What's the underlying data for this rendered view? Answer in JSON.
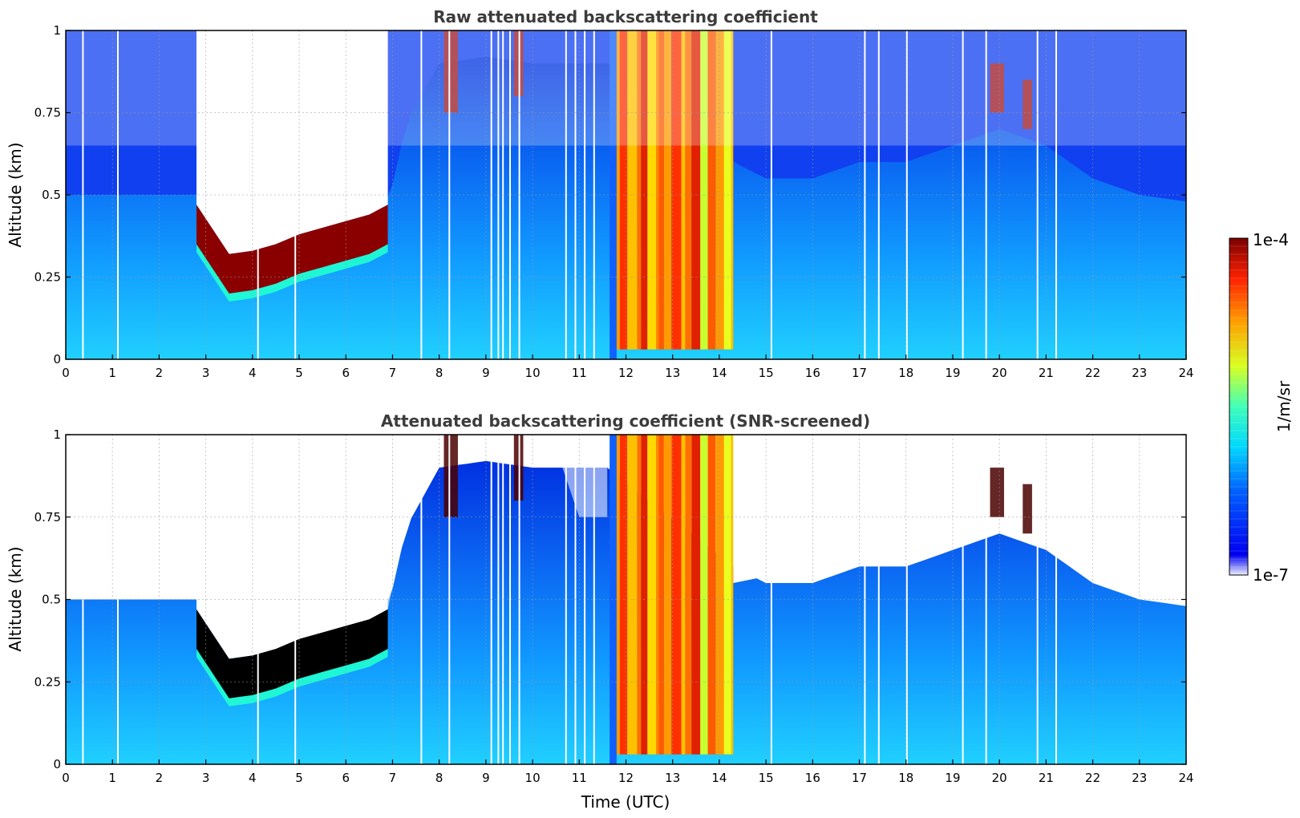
{
  "chart_data": [
    {
      "type": "heatmap",
      "title": "Raw attenuated backscattering coefficient",
      "xlabel": "",
      "ylabel": "Altitude (km)",
      "xlim": [
        0,
        24
      ],
      "ylim": [
        0,
        1
      ],
      "x_ticks": [
        "0",
        "1",
        "2",
        "3",
        "4",
        "5",
        "6",
        "7",
        "8",
        "9",
        "10",
        "11",
        "12",
        "13",
        "14",
        "15",
        "16",
        "17",
        "18",
        "19",
        "20",
        "21",
        "22",
        "23",
        "24"
      ],
      "y_ticks": [
        "0",
        "0.25",
        "0.5",
        "0.75",
        "1"
      ],
      "grid": true,
      "colormap": "jet",
      "background_layer_top_km": [
        [
          0,
          0.5
        ],
        [
          2.8,
          0.5
        ],
        [
          3.5,
          0.32
        ],
        [
          4.0,
          0.34
        ],
        [
          4.5,
          0.33
        ],
        [
          5.0,
          0.37
        ],
        [
          5.5,
          0.39
        ],
        [
          6.0,
          0.41
        ],
        [
          6.5,
          0.43
        ],
        [
          6.9,
          0.47
        ],
        [
          7.3,
          0.72
        ],
        [
          8.0,
          0.9
        ],
        [
          9.0,
          0.92
        ],
        [
          10,
          0.9
        ],
        [
          11,
          0.9
        ],
        [
          11.6,
          0.9
        ],
        [
          14.3,
          0.6
        ],
        [
          15,
          0.55
        ],
        [
          16,
          0.55
        ],
        [
          17,
          0.6
        ],
        [
          18,
          0.6
        ],
        [
          19,
          0.65
        ],
        [
          20,
          0.7
        ],
        [
          21,
          0.65
        ],
        [
          22,
          0.55
        ],
        [
          23,
          0.5
        ],
        [
          24,
          0.48
        ]
      ],
      "cloud_layer": {
        "x_range": [
          2.8,
          6.9
        ],
        "base_km": [
          [
            2.8,
            0.35
          ],
          [
            3.5,
            0.2
          ],
          [
            4.0,
            0.21
          ],
          [
            4.5,
            0.23
          ],
          [
            5.0,
            0.26
          ],
          [
            5.5,
            0.28
          ],
          [
            6.0,
            0.3
          ],
          [
            6.5,
            0.32
          ],
          [
            6.9,
            0.35
          ]
        ]
      },
      "rain_interval": [
        11.7,
        14.3
      ],
      "elevated_features": [
        {
          "x": [
            8.1,
            8.4
          ],
          "alt_range": [
            0.75,
            1.0
          ]
        },
        {
          "x": [
            9.6,
            9.8
          ],
          "alt_range": [
            0.8,
            1.0
          ]
        },
        {
          "x": [
            19.8,
            20.1
          ],
          "alt_range": [
            0.75,
            0.9
          ]
        },
        {
          "x": [
            20.5,
            20.7
          ],
          "alt_range": [
            0.7,
            0.85
          ]
        }
      ],
      "data_gaps_utc": [
        0.35,
        1.1,
        4.1,
        4.9,
        7.6,
        8.2,
        9.1,
        9.25,
        9.35,
        9.5,
        9.7,
        10.7,
        10.9,
        11.1,
        11.3,
        15.1,
        17.1,
        17.4,
        18.0,
        19.2,
        19.7,
        20.8,
        21.2
      ]
    },
    {
      "type": "heatmap",
      "title": "Attenuated backscattering coefficient (SNR-screened)",
      "xlabel": "Time (UTC)",
      "ylabel": "Altitude (km)",
      "xlim": [
        0,
        24
      ],
      "ylim": [
        0,
        1
      ],
      "x_ticks": [
        "0",
        "1",
        "2",
        "3",
        "4",
        "5",
        "6",
        "7",
        "8",
        "9",
        "10",
        "11",
        "12",
        "13",
        "14",
        "15",
        "16",
        "17",
        "18",
        "19",
        "20",
        "21",
        "22",
        "23",
        "24"
      ],
      "y_ticks": [
        "0",
        "0.25",
        "0.5",
        "0.75",
        "1"
      ],
      "grid": true,
      "colormap": "jet"
    }
  ],
  "colorbar": {
    "label": "1/m/sr",
    "max_label": "1e-4",
    "min_label": "1e-7",
    "scale": "log",
    "range": [
      1e-07,
      0.0001
    ]
  }
}
